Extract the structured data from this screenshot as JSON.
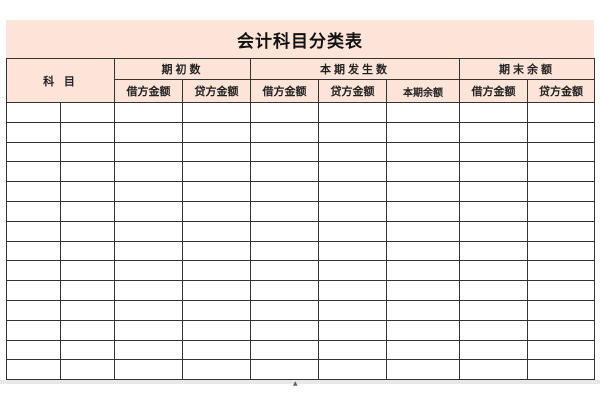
{
  "title": "会计科目分类表",
  "header": {
    "subject": "科 目",
    "groups": [
      "期初数",
      "本期发生数",
      "期末余额"
    ],
    "columns": [
      "借方金额",
      "贷方金额",
      "借方金额",
      "贷方金额",
      "本期余额",
      "借方金额",
      "贷方金额"
    ]
  },
  "row_count": 14,
  "colors": {
    "header_bg": "#fde4d9",
    "border": "#333333"
  }
}
